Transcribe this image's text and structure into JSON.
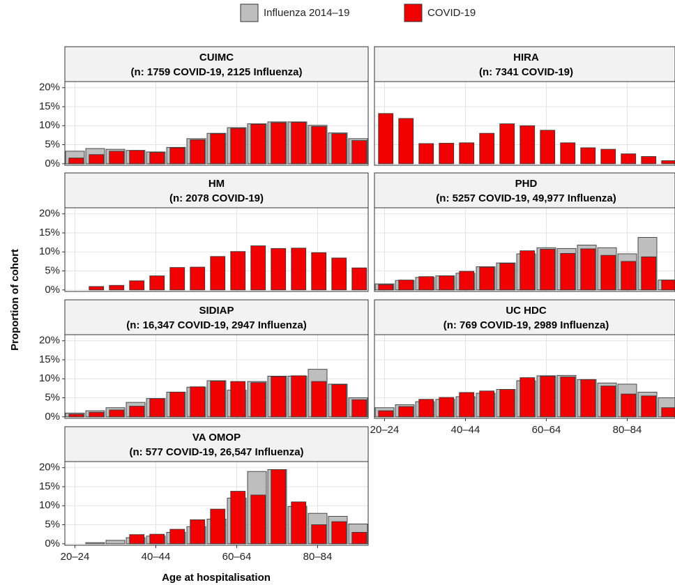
{
  "legend": [
    {
      "name": "Influenza 2014–19",
      "color": "#bebebe"
    },
    {
      "name": "COVID-19",
      "color": "#f00000"
    }
  ],
  "y_label": "Proportion of cohort",
  "x_label": "Age at hospitalisation",
  "categories": [
    "20–24",
    null,
    null,
    null,
    "40–44",
    null,
    null,
    null,
    "60–64",
    null,
    null,
    null,
    "80–84",
    null,
    null
  ],
  "ylim": [
    -0.4,
    21.6
  ],
  "yticks": [
    {
      "value": 0,
      "label": "0%"
    },
    {
      "value": 5,
      "label": "5%"
    },
    {
      "value": 10,
      "label": "10%"
    },
    {
      "value": 15,
      "label": "15%"
    },
    {
      "value": 20,
      "label": "20%"
    }
  ],
  "grid": true,
  "chart_data": [
    {
      "type": "bar",
      "title": "CUIMC",
      "subtitle": "(n: 1759 COVID-19, 2125 Influenza)",
      "show_y_axis": true,
      "show_x_axis": false,
      "influenza": [
        3.3,
        4.0,
        3.8,
        3.5,
        3.1,
        4.3,
        6.6,
        8.0,
        9.5,
        10.5,
        11.0,
        11.0,
        10.1,
        8.1,
        6.6
      ],
      "covid": [
        1.5,
        2.4,
        3.3,
        3.5,
        3.0,
        4.2,
        6.3,
        7.9,
        9.3,
        10.4,
        10.8,
        10.9,
        9.8,
        7.9,
        6.1
      ]
    },
    {
      "type": "bar",
      "title": "HIRA",
      "subtitle": "(n: 7341 COVID-19)",
      "show_y_axis": false,
      "show_x_axis": false,
      "covid": [
        13.2,
        11.9,
        5.3,
        5.4,
        5.5,
        8.0,
        10.5,
        10.0,
        8.8,
        5.5,
        4.2,
        3.8,
        2.6,
        1.9,
        0.8
      ]
    },
    {
      "type": "bar",
      "title": "HM",
      "subtitle": "(n: 2078 COVID-19)",
      "show_y_axis": true,
      "show_x_axis": false,
      "covid": [
        null,
        0.9,
        1.2,
        2.4,
        3.7,
        5.9,
        6.0,
        8.8,
        10.1,
        11.6,
        10.9,
        11.0,
        9.8,
        8.4,
        5.8
      ]
    },
    {
      "type": "bar",
      "title": "PHD",
      "subtitle": "(n: 5257 COVID-19, 49,977 Influenza)",
      "show_y_axis": false,
      "show_x_axis": false,
      "influenza": [
        1.6,
        2.5,
        3.3,
        3.7,
        4.4,
        6.1,
        7.1,
        9.5,
        11.1,
        10.9,
        11.8,
        11.1,
        9.5,
        13.8,
        2.6
      ],
      "covid": [
        1.4,
        2.6,
        3.5,
        3.7,
        4.9,
        6.0,
        7.0,
        10.3,
        10.7,
        9.6,
        10.8,
        9.1,
        7.5,
        8.7,
        2.6
      ]
    },
    {
      "type": "bar",
      "title": "SIDIAP",
      "subtitle": "(n: 16,347 COVID-19, 2947 Influenza)",
      "show_y_axis": true,
      "show_x_axis": false,
      "influenza": [
        1.0,
        1.6,
        2.4,
        3.8,
        4.8,
        6.5,
        7.8,
        9.5,
        7.0,
        9.3,
        10.7,
        10.7,
        12.5,
        8.6,
        5.0
      ],
      "covid": [
        0.7,
        1.2,
        1.8,
        2.8,
        4.8,
        6.5,
        7.9,
        9.4,
        9.3,
        9.0,
        10.6,
        10.8,
        9.3,
        8.5,
        4.5
      ]
    },
    {
      "type": "bar",
      "title": "UC HDC",
      "subtitle": "(n: 769 COVID-19, 2989 Influenza)",
      "show_y_axis": false,
      "show_x_axis": true,
      "influenza": [
        2.4,
        3.2,
        4.0,
        4.6,
        5.3,
        6.2,
        7.2,
        9.5,
        10.8,
        10.9,
        9.8,
        8.9,
        8.6,
        6.5,
        5.0
      ],
      "covid": [
        1.6,
        2.7,
        4.6,
        5.1,
        6.4,
        6.8,
        7.2,
        10.3,
        10.7,
        10.5,
        9.8,
        8.1,
        6.0,
        5.5,
        2.4
      ]
    },
    {
      "type": "bar",
      "title": "VA OMOP",
      "subtitle": "(n: 577 COVID-19, 26,547 Influenza)",
      "show_y_axis": true,
      "show_x_axis": true,
      "influenza": [
        null,
        0.3,
        0.9,
        1.6,
        2.0,
        3.0,
        4.5,
        6.5,
        12.0,
        19.0,
        19.5,
        9.8,
        8.0,
        7.2,
        5.2
      ],
      "covid": [
        null,
        null,
        null,
        2.4,
        2.5,
        3.8,
        6.3,
        9.1,
        13.8,
        12.8,
        19.5,
        11.0,
        5.0,
        5.8,
        3.0
      ]
    }
  ]
}
